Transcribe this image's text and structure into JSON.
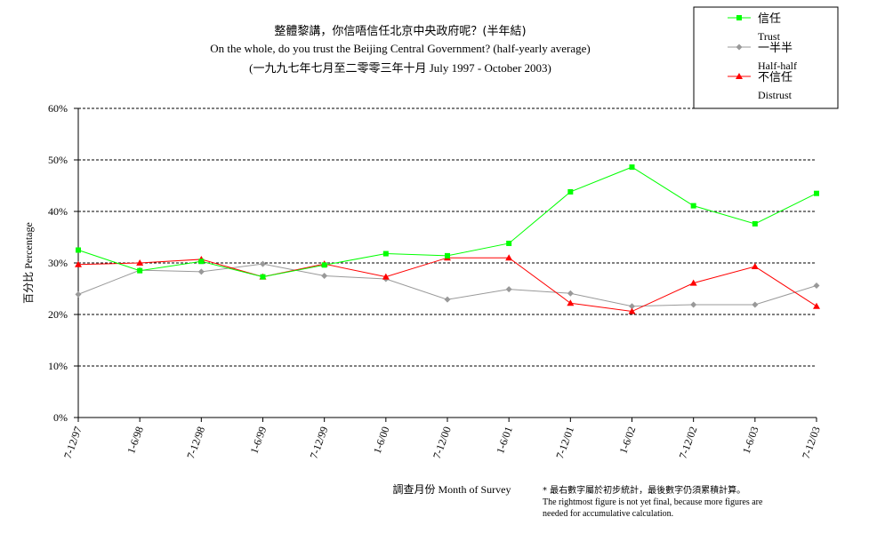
{
  "chart_data": {
    "type": "line",
    "title": "整體黎講，你信唔信任北京中央政府呢？(半年結)",
    "subtitle": "On the whole, do you trust the Beijing Central Government?  (half-yearly average)",
    "subtitle2": "(一九九七年七月至二零零三年十月 July 1997 - October 2003)",
    "xlabel": "調查月份 Month of Survey",
    "ylabel": "百分比 Percentage",
    "ylim": [
      0,
      60
    ],
    "yticks": [
      "0%",
      "10%",
      "20%",
      "30%",
      "40%",
      "50%",
      "60%"
    ],
    "grid": true,
    "legend_placement": "top-right",
    "categories": [
      "7-12/97",
      "1-6/98",
      "7-12/98",
      "1-6/99",
      "7-12/99",
      "1-6/00",
      "7-12/00",
      "1-6/01",
      "7-12/01",
      "1-6/02",
      "7-12/02",
      "1-6/03",
      "7-12/03"
    ],
    "series": [
      {
        "name": "信任",
        "name_en": "Trust",
        "color": "#00ff00",
        "marker": "square",
        "values": [
          32.5,
          28.5,
          30.3,
          27.3,
          29.6,
          31.8,
          31.4,
          33.8,
          43.8,
          48.6,
          41.1,
          37.6,
          43.5
        ]
      },
      {
        "name": "一半半",
        "name_en": "Half-half",
        "color": "#999999",
        "marker": "diamond",
        "values": [
          23.9,
          28.6,
          28.3,
          29.8,
          27.5,
          26.9,
          22.9,
          24.9,
          24.1,
          21.6,
          21.9,
          21.9,
          25.6
        ]
      },
      {
        "name": "不信任",
        "name_en": "Distrust",
        "color": "#ff0000",
        "marker": "triangle",
        "values": [
          29.7,
          30.0,
          30.7,
          27.3,
          29.8,
          27.3,
          31.0,
          31.0,
          22.2,
          20.6,
          26.1,
          29.3,
          21.6
        ]
      }
    ],
    "note_zh": "* 最右數字屬於初步統計，最後數字仍須累積計算。",
    "note_en_1": "The rightmost figure is not yet final, because more figures are",
    "note_en_2": "needed for accumulative calculation."
  }
}
